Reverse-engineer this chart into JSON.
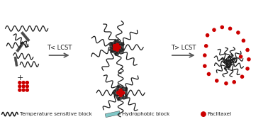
{
  "bg_color": "#ffffff",
  "text_color": "#000000",
  "arrow_color": "#555555",
  "red_dot_color": "#cc0000",
  "wavy_color": "#1a1a1a",
  "hydrophobic_color": "#6abfbf",
  "legend_wavy_label": "Temperature sensitive block",
  "legend_hydro_label": "Hydrophobic block",
  "legend_ptx_label": "Paclitaxel",
  "arrow1_label": "T< LCST",
  "arrow2_label": "T> LCST",
  "figsize": [
    3.78,
    1.75
  ],
  "dpi": 100,
  "xlim": [
    0,
    10
  ],
  "ylim": [
    0,
    4.6
  ]
}
